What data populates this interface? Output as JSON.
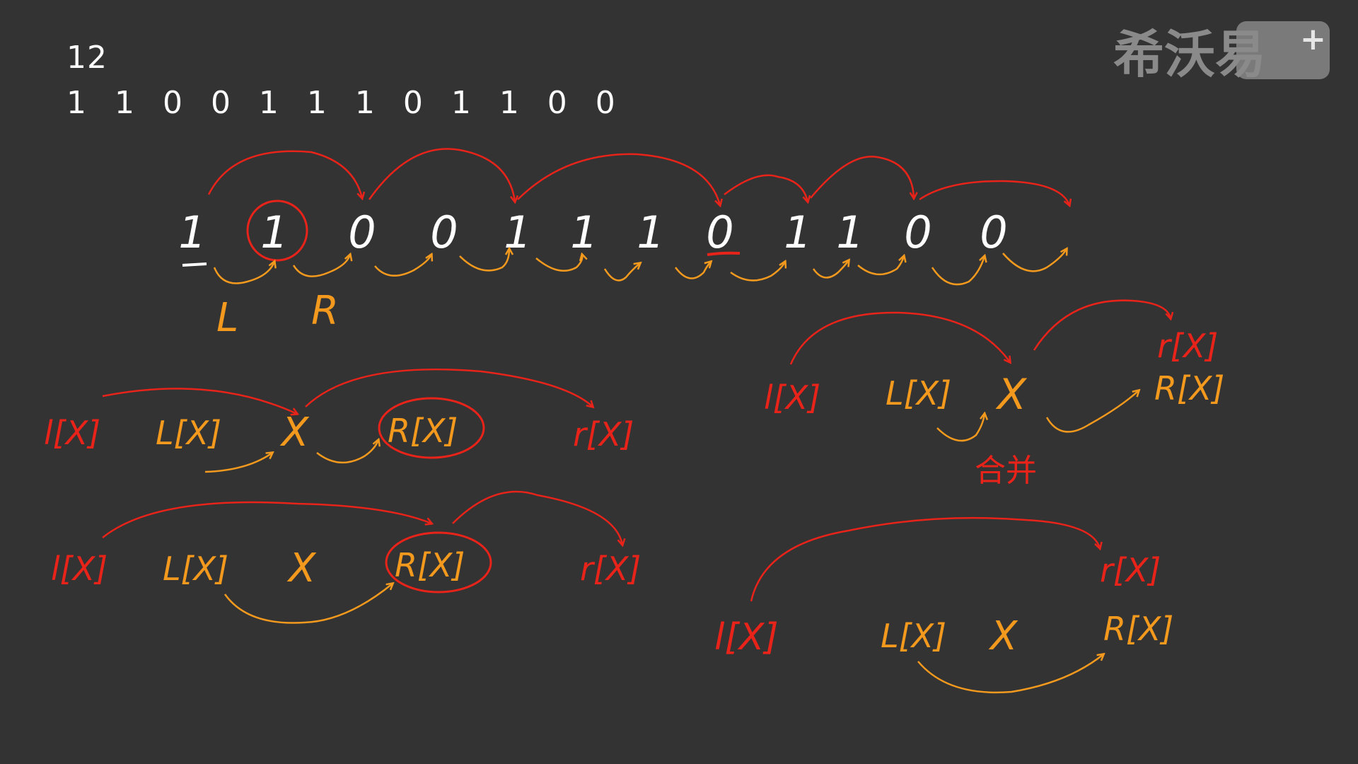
{
  "input": {
    "n": "12",
    "bits": "1 1 0 0 1 1 1 0 1 1 0 0"
  },
  "logo": {
    "text": "希沃易",
    "badge": "+"
  },
  "digits": [
    "1",
    "1",
    "0",
    "0",
    "1",
    "1",
    "1",
    "0",
    "1",
    "1",
    "0",
    "0"
  ],
  "pointer_labels": {
    "left": "L",
    "right": "R"
  },
  "notes": {
    "l_of_x": "l[X]",
    "L_of_x": "L[X]",
    "x": "X",
    "R_of_x": "R[X]",
    "r_of_x": "r[X]",
    "merge": "合并"
  },
  "colors": {
    "background": "#333333",
    "white": "#ffffff",
    "red": "#e8231a",
    "orange": "#f39a1e"
  }
}
